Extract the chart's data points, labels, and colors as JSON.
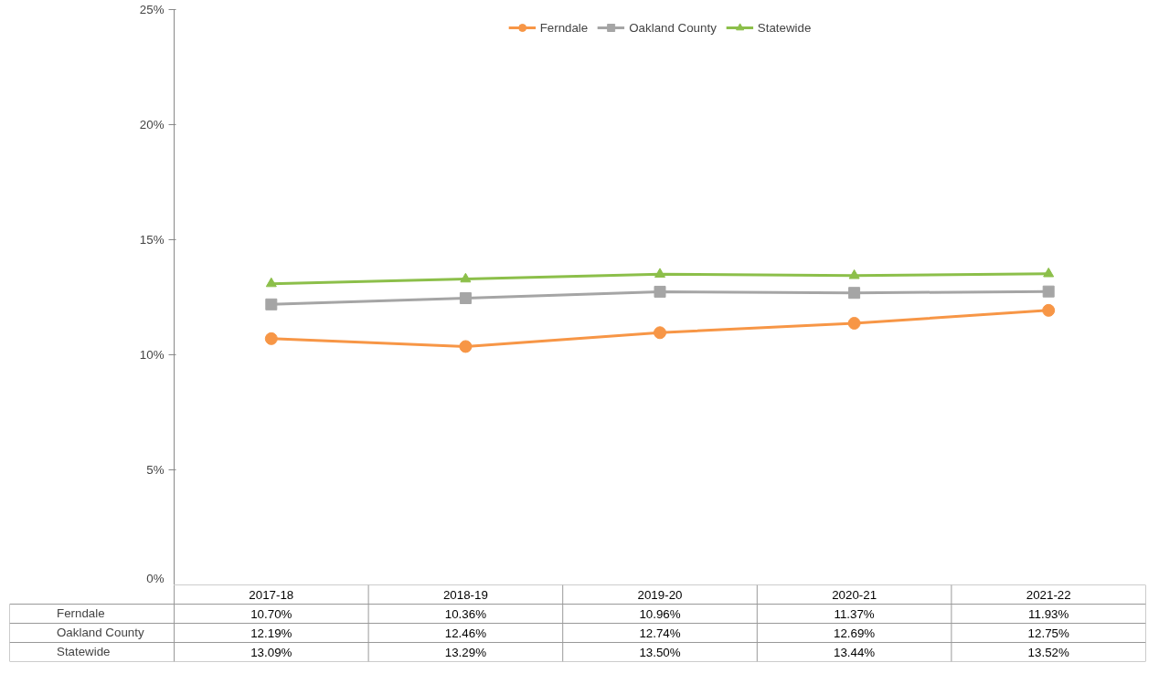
{
  "chart_data": {
    "type": "line",
    "categories": [
      "2017-18",
      "2018-19",
      "2019-20",
      "2020-21",
      "2021-22"
    ],
    "ylim": [
      0,
      25
    ],
    "yticks": [
      {
        "value": 0,
        "label": "0%"
      },
      {
        "value": 5,
        "label": "5%"
      },
      {
        "value": 10,
        "label": "10%"
      },
      {
        "value": 15,
        "label": "15%"
      },
      {
        "value": 20,
        "label": "20%"
      },
      {
        "value": 25,
        "label": "25%"
      }
    ],
    "grid": false,
    "legend": "top",
    "line_style": "solid",
    "series": [
      {
        "name": "Ferndale",
        "color": "#f79646",
        "marker": "circle",
        "values": [
          10.7,
          10.36,
          10.96,
          11.37,
          11.93
        ],
        "value_labels": [
          "10.70%",
          "10.36%",
          "10.96%",
          "11.37%",
          "11.93%"
        ]
      },
      {
        "name": "Oakland County",
        "color": "#a5a5a5",
        "marker": "square",
        "values": [
          12.19,
          12.46,
          12.74,
          12.69,
          12.75
        ],
        "value_labels": [
          "12.19%",
          "12.46%",
          "12.74%",
          "12.69%",
          "12.75%"
        ]
      },
      {
        "name": "Statewide",
        "color": "#8cbf4a",
        "marker": "triangle",
        "values": [
          13.09,
          13.29,
          13.5,
          13.44,
          13.52
        ],
        "value_labels": [
          "13.09%",
          "13.29%",
          "13.50%",
          "13.44%",
          "13.52%"
        ]
      }
    ]
  }
}
